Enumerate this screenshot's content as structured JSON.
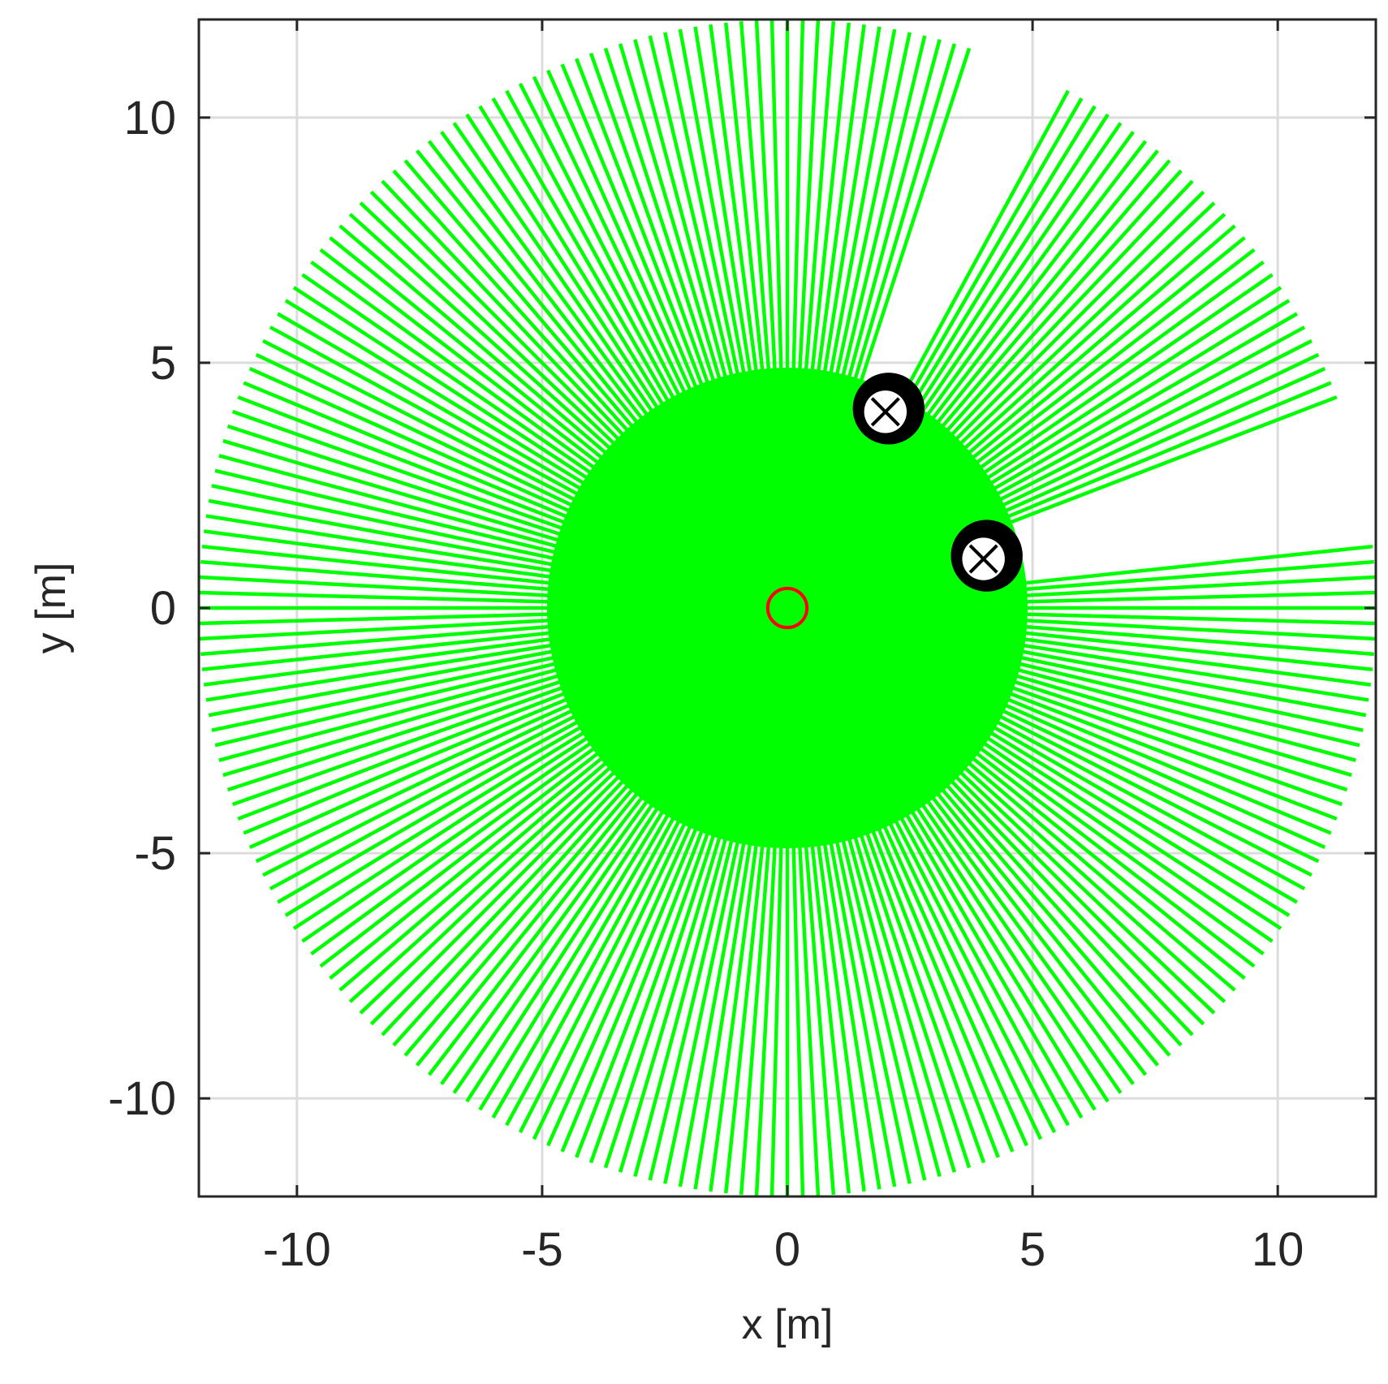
{
  "chart_data": {
    "type": "line",
    "title": "",
    "xlabel": "x [m]",
    "ylabel": "y [m]",
    "xlim": [
      -12,
      12
    ],
    "ylim": [
      -12,
      12
    ],
    "x_ticks": [
      -10,
      -5,
      0,
      5,
      10
    ],
    "y_ticks": [
      -10,
      -5,
      0,
      5,
      10
    ],
    "x_tick_labels": [
      "-10",
      "-5",
      "0",
      "5",
      "10"
    ],
    "y_tick_labels": [
      "-10",
      "-5",
      "0",
      "5",
      "10"
    ],
    "grid": true,
    "legend": "none",
    "sensor": {
      "x": 0,
      "y": 0,
      "radius": 0.4,
      "color": "#ff0000"
    },
    "rays": {
      "color": "#00ff00",
      "max_range": 12,
      "count": 240,
      "blocked_sectors": [
        {
          "from_deg": 62,
          "to_deg": 71,
          "note_range": 4.0
        },
        {
          "from_deg": 7,
          "to_deg": 20,
          "note_range": 4.0
        }
      ]
    },
    "obstacles": [
      {
        "x": 2,
        "y": 4,
        "radius": 0.5,
        "color": "#000000",
        "marker": "x"
      },
      {
        "x": 4,
        "y": 1,
        "radius": 0.5,
        "color": "#000000",
        "marker": "x"
      }
    ]
  }
}
